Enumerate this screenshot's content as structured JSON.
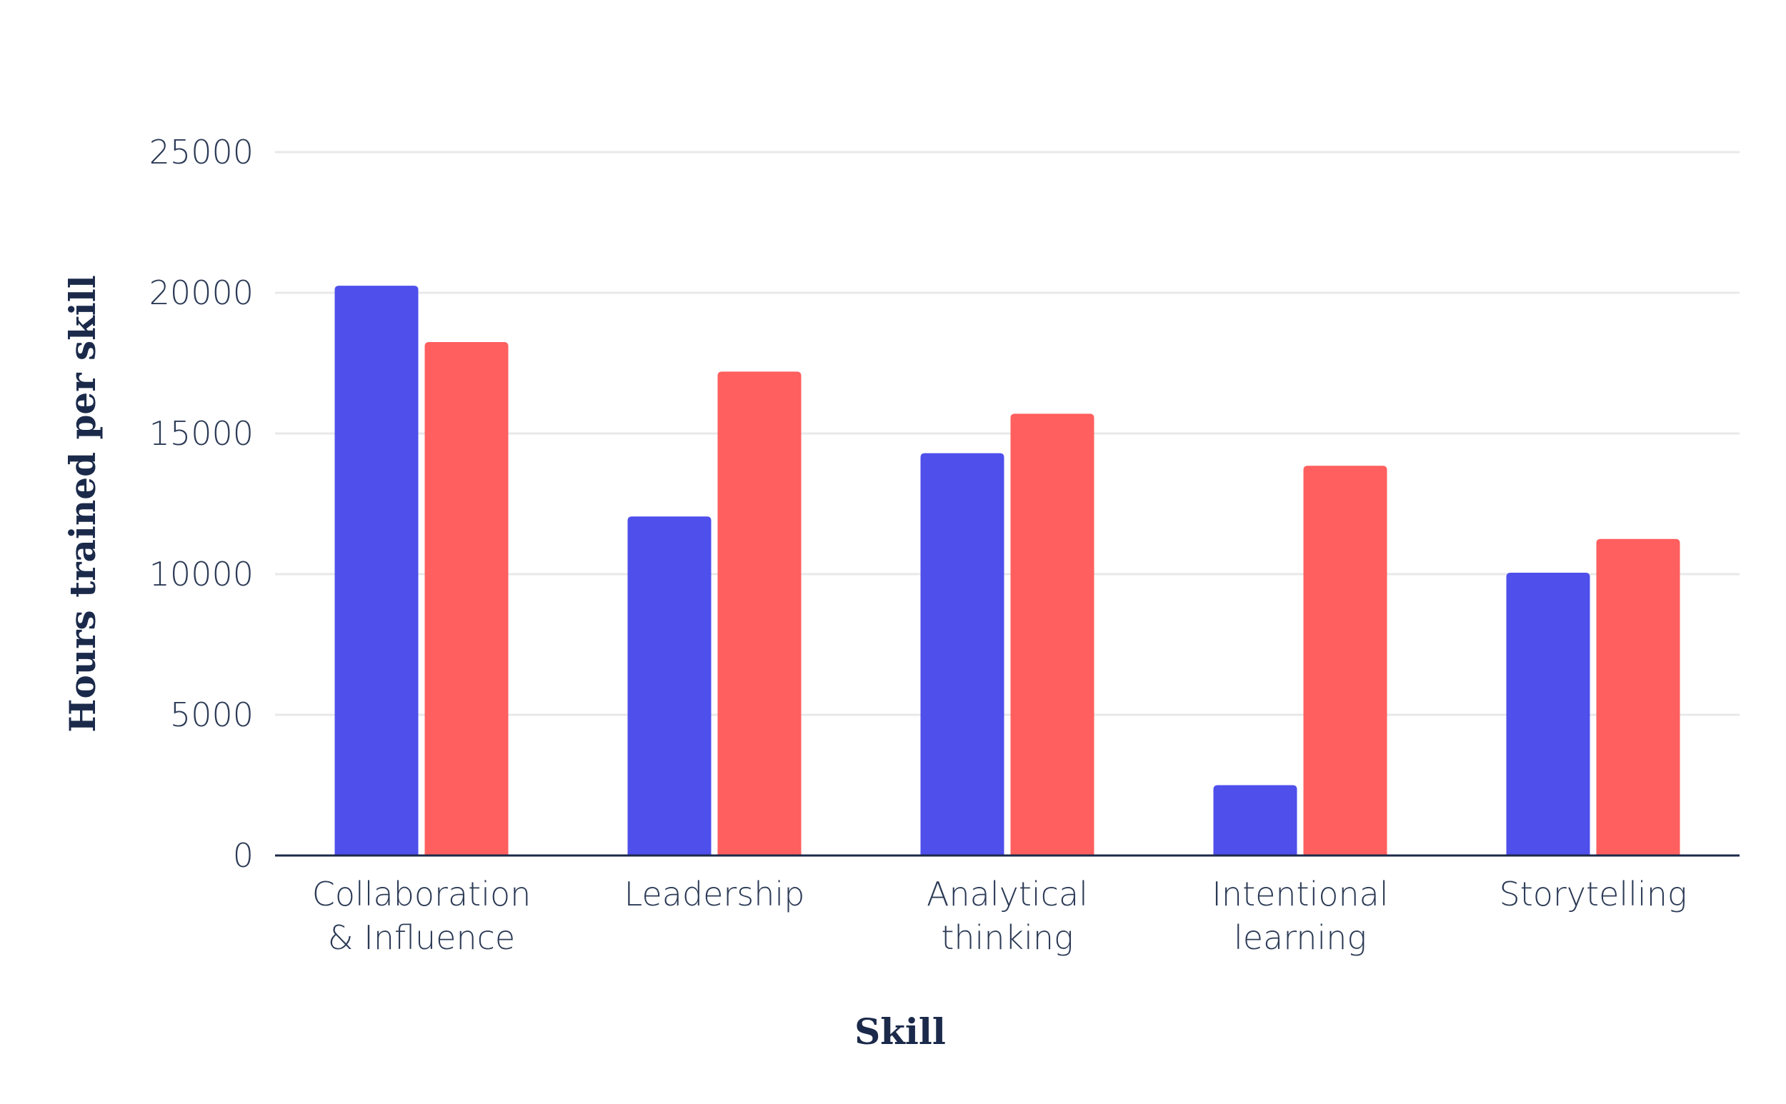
{
  "chart_data": {
    "type": "bar",
    "title": "",
    "xlabel": "Skill",
    "ylabel": "Hours trained per skill",
    "ylim": [
      0,
      25000
    ],
    "yticks": [
      "0",
      "5000",
      "10000",
      "15000",
      "20000",
      "25000"
    ],
    "categories": [
      [
        "Collaboration",
        "& Influence"
      ],
      [
        "Leadership"
      ],
      [
        "Analytical",
        "thinking"
      ],
      [
        "Intentional",
        "learning"
      ],
      [
        "Storytelling"
      ]
    ],
    "series": [
      {
        "values": [
          20250,
          12050,
          14300,
          2500,
          10050
        ],
        "color": "#4f4fec"
      },
      {
        "values": [
          18250,
          17200,
          15700,
          13850,
          11250
        ],
        "color": "#ff5f5f"
      }
    ],
    "grid": true,
    "legend": "none"
  }
}
